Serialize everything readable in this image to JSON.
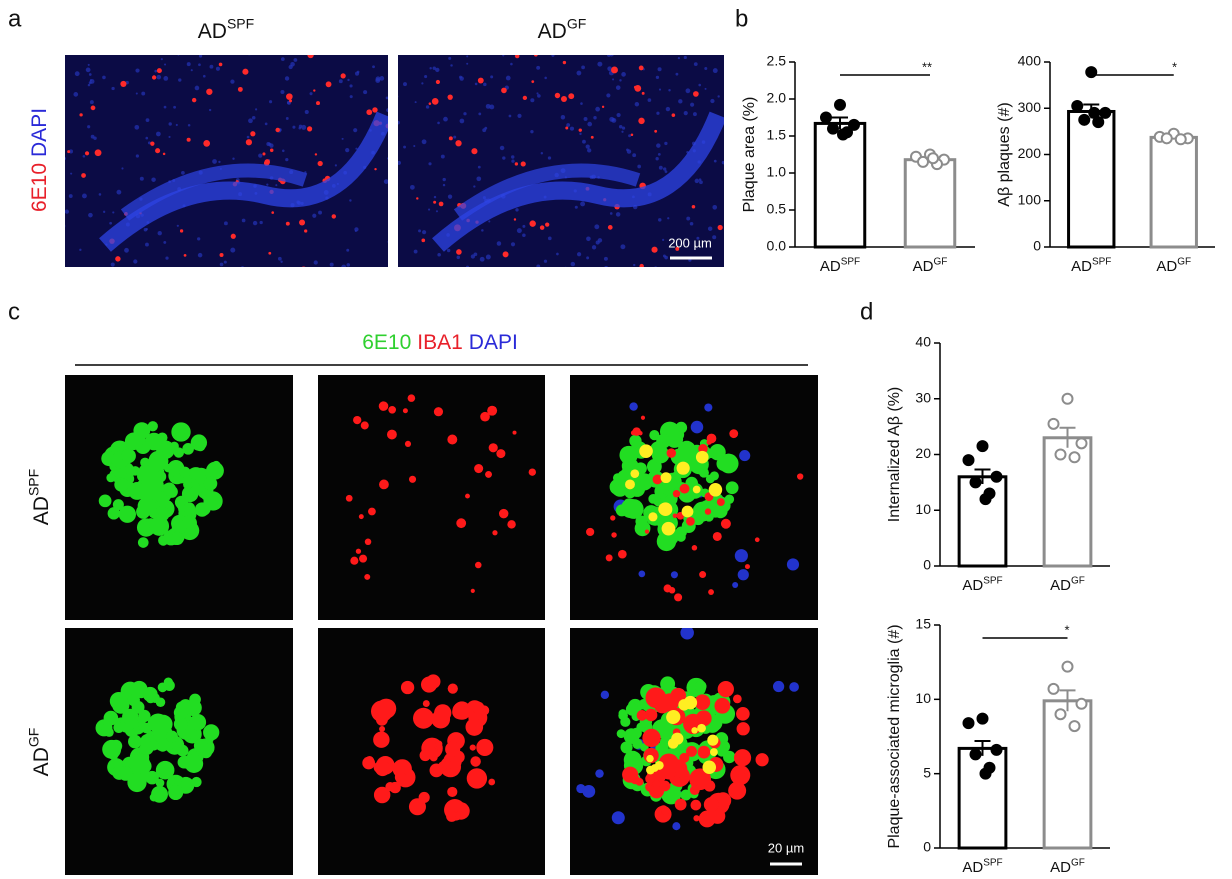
{
  "panel_labels": [
    "a",
    "b",
    "c",
    "d"
  ],
  "panel_a": {
    "columns": [
      {
        "base": "AD",
        "sup": "SPF"
      },
      {
        "base": "AD",
        "sup": "GF"
      }
    ],
    "stain_labels": [
      "6E10",
      "DAPI"
    ],
    "scale_bar": "200 µm"
  },
  "panel_c": {
    "stain_labels": [
      "6E10",
      "IBA1",
      "DAPI"
    ],
    "rows": [
      {
        "base": "AD",
        "sup": "SPF"
      },
      {
        "base": "AD",
        "sup": "GF"
      }
    ],
    "scale_bar": "20 µm"
  },
  "chart_data": [
    {
      "type": "bar",
      "y_label": "Plaque area (%)",
      "categories": [
        "AD",
        "AD"
      ],
      "category_superscripts": [
        "SPF",
        "GF"
      ],
      "values": [
        1.67,
        1.18
      ],
      "errors": [
        0.08,
        0.03
      ],
      "points": [
        [
          1.92,
          1.75,
          1.65,
          1.6,
          1.55,
          1.52
        ],
        [
          1.25,
          1.22,
          1.18,
          1.15,
          1.12,
          1.2
        ]
      ],
      "colors": [
        "#000000",
        "#8c8c8c"
      ],
      "ylim": [
        0,
        2.5
      ],
      "yticks": [
        {
          "value": 0,
          "label": "0.0"
        },
        0.5,
        {
          "value": 1,
          "label": "1.0"
        },
        1.5,
        {
          "value": 2,
          "label": "2.0"
        },
        2.5
      ],
      "significance": "**"
    },
    {
      "type": "bar",
      "y_label": "Aβ plaques (#)",
      "categories": [
        "AD",
        "AD"
      ],
      "category_superscripts": [
        "SPF",
        "GF"
      ],
      "values": [
        293,
        237
      ],
      "errors": [
        15,
        4
      ],
      "points": [
        [
          378,
          305,
          290,
          275,
          270,
          290
        ],
        [
          245,
          238,
          235,
          235,
          233
        ]
      ],
      "colors": [
        "#000000",
        "#8c8c8c"
      ],
      "ylim": [
        0,
        400
      ],
      "yticks": [
        0,
        100,
        200,
        300,
        400
      ],
      "significance": "*"
    },
    {
      "type": "bar",
      "y_label": "Internalized Aβ (%)",
      "categories": [
        "AD",
        "AD"
      ],
      "category_superscripts": [
        "SPF",
        "GF"
      ],
      "values": [
        16,
        23
      ],
      "errors": [
        1.3,
        1.8
      ],
      "points": [
        [
          21.5,
          19,
          16,
          15,
          13,
          12
        ],
        [
          30,
          25.5,
          22,
          20,
          19.5
        ]
      ],
      "colors": [
        "#000000",
        "#8c8c8c"
      ],
      "ylim": [
        0,
        40
      ],
      "yticks": [
        0,
        10,
        20,
        30,
        40
      ]
    },
    {
      "type": "bar",
      "y_label": "Plaque-associated microglia (#)",
      "categories": [
        "AD",
        "AD"
      ],
      "category_superscripts": [
        "SPF",
        "GF"
      ],
      "values": [
        6.7,
        9.9
      ],
      "errors": [
        0.5,
        0.7
      ],
      "points": [
        [
          8.7,
          8.4,
          6.6,
          6.3,
          5.4,
          5.0
        ],
        [
          12.2,
          10.7,
          9.7,
          9.0,
          8.2
        ]
      ],
      "colors": [
        "#000000",
        "#8c8c8c"
      ],
      "ylim": [
        0,
        15
      ],
      "yticks": [
        0,
        5,
        10,
        15
      ],
      "significance": "*"
    }
  ]
}
